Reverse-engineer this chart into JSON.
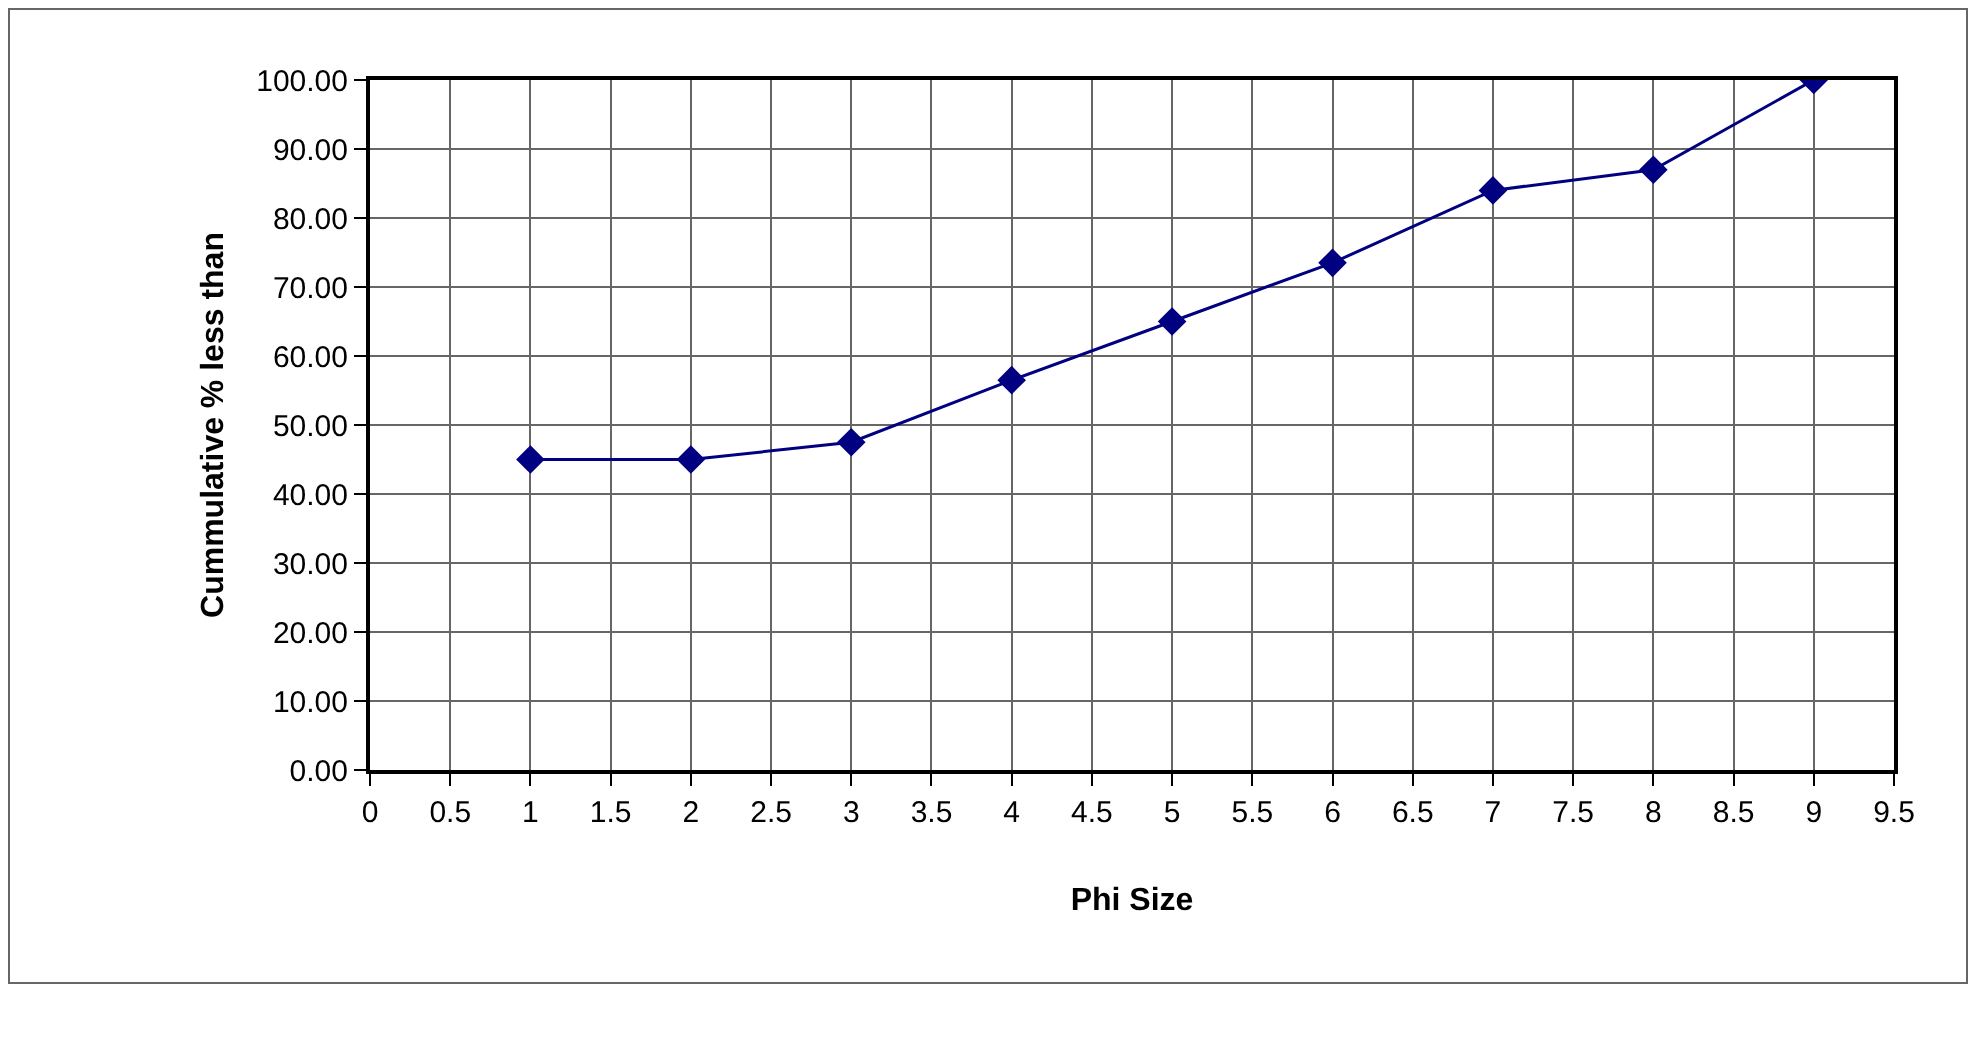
{
  "chart_data": {
    "type": "line",
    "xlabel": "Phi Size",
    "ylabel": "Cummulative % less than",
    "x": [
      1,
      2,
      3,
      4,
      5,
      6,
      7,
      8,
      9
    ],
    "series": [
      {
        "color": "#000080",
        "values": [
          45,
          45,
          47.5,
          56.5,
          65,
          73.5,
          84,
          87,
          100
        ]
      }
    ],
    "xlim": [
      0,
      9.5
    ],
    "xticks": [
      0,
      0.5,
      1,
      1.5,
      2,
      2.5,
      3,
      3.5,
      4,
      4.5,
      5,
      5.5,
      6,
      6.5,
      7,
      7.5,
      8,
      8.5,
      9,
      9.5
    ],
    "ylim": [
      0,
      100
    ],
    "yticks": [
      {
        "value": 0,
        "label": "0.00"
      },
      {
        "value": 10,
        "label": "10.00"
      },
      {
        "value": 20,
        "label": "20.00"
      },
      {
        "value": 30,
        "label": "30.00"
      },
      {
        "value": 40,
        "label": "40.00"
      },
      {
        "value": 50,
        "label": "50.00"
      },
      {
        "value": 60,
        "label": "60.00"
      },
      {
        "value": 70,
        "label": "70.00"
      },
      {
        "value": 80,
        "label": "80.00"
      },
      {
        "value": 90,
        "label": "90.00"
      },
      {
        "value": 100,
        "label": "100.00"
      }
    ],
    "grid": true,
    "marker": "diamond",
    "line_style": "solid"
  }
}
